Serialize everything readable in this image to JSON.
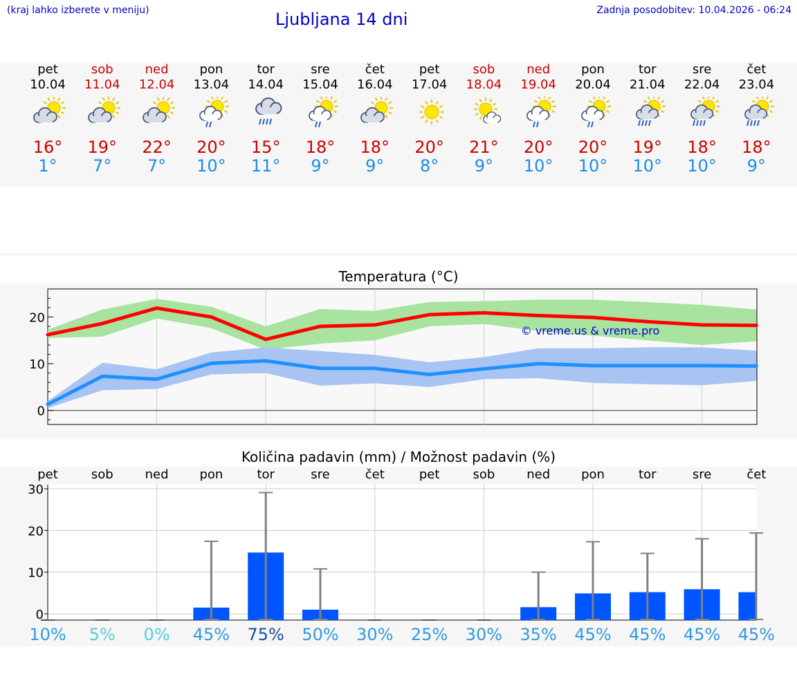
{
  "header": {
    "menu_hint": "(kraj lahko izberete v meniju)",
    "title": "Ljubljana 14 dni",
    "updated": "Zadnja posodobitev: 10.04.2026 - 06:24"
  },
  "days": [
    {
      "name": "pet",
      "date": "10.04",
      "weekend": false,
      "icon": "sun-cloud-icon",
      "tmax": "16°",
      "tmin": "1°"
    },
    {
      "name": "sob",
      "date": "11.04",
      "weekend": true,
      "icon": "sun-cloud-icon",
      "tmax": "19°",
      "tmin": "7°"
    },
    {
      "name": "ned",
      "date": "12.04",
      "weekend": true,
      "icon": "sun-cloud-icon",
      "tmax": "22°",
      "tmin": "7°"
    },
    {
      "name": "pon",
      "date": "13.04",
      "weekend": false,
      "icon": "sun-cloud-light-rain-icon",
      "tmax": "20°",
      "tmin": "10°"
    },
    {
      "name": "tor",
      "date": "14.04",
      "weekend": false,
      "icon": "cloud-rain-icon",
      "tmax": "15°",
      "tmin": "11°"
    },
    {
      "name": "sre",
      "date": "15.04",
      "weekend": false,
      "icon": "sun-cloud-light-rain-icon",
      "tmax": "18°",
      "tmin": "9°"
    },
    {
      "name": "čet",
      "date": "16.04",
      "weekend": false,
      "icon": "sun-cloud-icon",
      "tmax": "18°",
      "tmin": "9°"
    },
    {
      "name": "pet",
      "date": "17.04",
      "weekend": false,
      "icon": "sun-icon",
      "tmax": "20°",
      "tmin": "8°"
    },
    {
      "name": "sob",
      "date": "18.04",
      "weekend": true,
      "icon": "sun-small-cloud-icon",
      "tmax": "21°",
      "tmin": "9°"
    },
    {
      "name": "ned",
      "date": "19.04",
      "weekend": true,
      "icon": "sun-cloud-light-rain-icon",
      "tmax": "20°",
      "tmin": "10°"
    },
    {
      "name": "pon",
      "date": "20.04",
      "weekend": false,
      "icon": "sun-cloud-light-rain-icon",
      "tmax": "20°",
      "tmin": "10°"
    },
    {
      "name": "tor",
      "date": "21.04",
      "weekend": false,
      "icon": "sun-cloud-rain-icon",
      "tmax": "19°",
      "tmin": "10°"
    },
    {
      "name": "sre",
      "date": "22.04",
      "weekend": false,
      "icon": "sun-cloud-rain-icon",
      "tmax": "18°",
      "tmin": "10°"
    },
    {
      "name": "čet",
      "date": "23.04",
      "weekend": false,
      "icon": "sun-cloud-rain-icon",
      "tmax": "18°",
      "tmin": "9°"
    }
  ],
  "colors": {
    "title": "#0000cc",
    "weekend": "#cc0000",
    "tmax": "#cc0000",
    "tmin": "#1e8be6",
    "max_band": "#a8e4a0",
    "min_band": "#a9c3f2",
    "max_line": "#ff0000",
    "min_line": "#1e90ff",
    "precip_bar": "#0055ff",
    "precip_err": "#808080",
    "watermark": "#0000cc"
  },
  "chart_data": [
    {
      "type": "line",
      "title": "Temperatura (°C)",
      "watermark": "© vreme.us & vreme.pro",
      "ylim": [
        -3,
        26
      ],
      "yticks": [
        0,
        10,
        20
      ],
      "x": [
        0,
        1,
        2,
        3,
        4,
        5,
        6,
        7,
        8,
        9,
        10,
        11,
        12,
        13
      ],
      "series": [
        {
          "name": "max",
          "values": [
            16.2,
            18.6,
            21.9,
            20.0,
            15.2,
            18.0,
            18.3,
            20.5,
            20.9,
            20.3,
            19.9,
            19.0,
            18.3,
            18.2
          ],
          "band_low": [
            15.5,
            15.8,
            19.7,
            17.6,
            13.0,
            14.3,
            15.0,
            18.0,
            18.5,
            17.0,
            16.0,
            15.0,
            14.0,
            14.8
          ],
          "band_high": [
            17.3,
            21.6,
            23.9,
            22.2,
            18.0,
            21.7,
            21.3,
            23.2,
            23.4,
            23.7,
            23.7,
            23.2,
            22.6,
            21.6
          ]
        },
        {
          "name": "min",
          "values": [
            1.3,
            7.3,
            6.7,
            10.1,
            10.6,
            9.0,
            9.0,
            7.7,
            8.9,
            10.0,
            9.6,
            9.6,
            9.6,
            9.5
          ],
          "band_low": [
            0.5,
            4.3,
            4.6,
            7.7,
            8.0,
            5.3,
            5.8,
            5.0,
            6.7,
            6.9,
            5.9,
            5.6,
            5.4,
            6.3
          ],
          "band_high": [
            2.0,
            10.2,
            8.8,
            12.4,
            13.5,
            12.7,
            11.9,
            10.3,
            11.4,
            13.3,
            13.3,
            13.5,
            13.5,
            12.8
          ]
        }
      ]
    },
    {
      "type": "bar",
      "title": "Količina padavin (mm) / Možnost padavin (%)",
      "ylim": [
        -1.5,
        31
      ],
      "yticks": [
        0,
        10,
        20,
        30
      ],
      "categories": [
        "pet",
        "sob",
        "ned",
        "pon",
        "tor",
        "sre",
        "čet",
        "pet",
        "sob",
        "ned",
        "pon",
        "tor",
        "sre",
        "čet"
      ],
      "values": [
        0,
        0,
        0,
        1.5,
        14.7,
        1.0,
        0,
        0,
        0,
        1.6,
        4.9,
        5.2,
        5.9,
        5.2
      ],
      "err_high": [
        0,
        0,
        0,
        17.4,
        29.1,
        10.8,
        0,
        0,
        0,
        10.0,
        17.3,
        14.5,
        18.0,
        19.4
      ],
      "probability": [
        "10%",
        "5%",
        "0%",
        "45%",
        "75%",
        "50%",
        "30%",
        "25%",
        "30%",
        "35%",
        "45%",
        "45%",
        "45%",
        "45%"
      ],
      "prob_colors": [
        "#3399dd",
        "#55ccdd",
        "#55ccdd",
        "#3399dd",
        "#1a4f9a",
        "#3399dd",
        "#3399dd",
        "#3399dd",
        "#3399dd",
        "#3399dd",
        "#3399dd",
        "#3399dd",
        "#3399dd",
        "#3399dd"
      ]
    }
  ]
}
